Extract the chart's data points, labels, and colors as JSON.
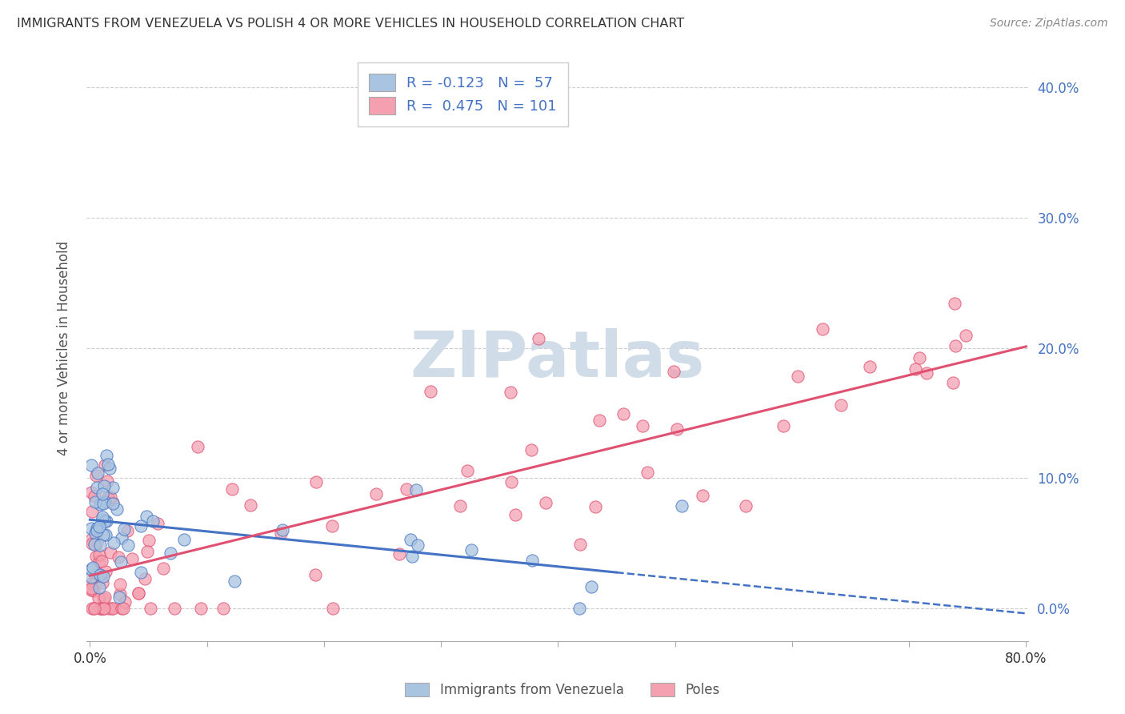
{
  "title": "IMMIGRANTS FROM VENEZUELA VS POLISH 4 OR MORE VEHICLES IN HOUSEHOLD CORRELATION CHART",
  "source": "Source: ZipAtlas.com",
  "ylabel": "4 or more Vehicles in Household",
  "xlim": [
    -0.003,
    0.802
  ],
  "ylim": [
    -0.025,
    0.425
  ],
  "xticks": [
    0.0,
    0.1,
    0.2,
    0.3,
    0.4,
    0.5,
    0.6,
    0.7,
    0.8
  ],
  "yticks": [
    0.0,
    0.1,
    0.2,
    0.3,
    0.4
  ],
  "xtick_labels": [
    "0.0%",
    "",
    "",
    "",
    "",
    "",
    "",
    "",
    "80.0%"
  ],
  "ytick_labels_right": [
    "0.0%",
    "10.0%",
    "20.0%",
    "30.0%",
    "40.0%"
  ],
  "legend_labels": [
    "Immigrants from Venezuela",
    "Poles"
  ],
  "R_venezuela": -0.123,
  "N_venezuela": 57,
  "R_poles": 0.475,
  "N_poles": 101,
  "color_venezuela": "#a8c4e0",
  "color_poles": "#f4a0b0",
  "color_trendline_venezuela": "#4472c4",
  "color_trendline_poles": "#e05070",
  "background_color": "#ffffff",
  "watermark": "ZIPatlas",
  "watermark_color": "#d0dde8",
  "trendline_v_solid_end": 0.45,
  "trendline_v_intercept": 0.068,
  "trendline_v_slope": -0.09,
  "trendline_p_intercept": 0.025,
  "trendline_p_slope": 0.22
}
